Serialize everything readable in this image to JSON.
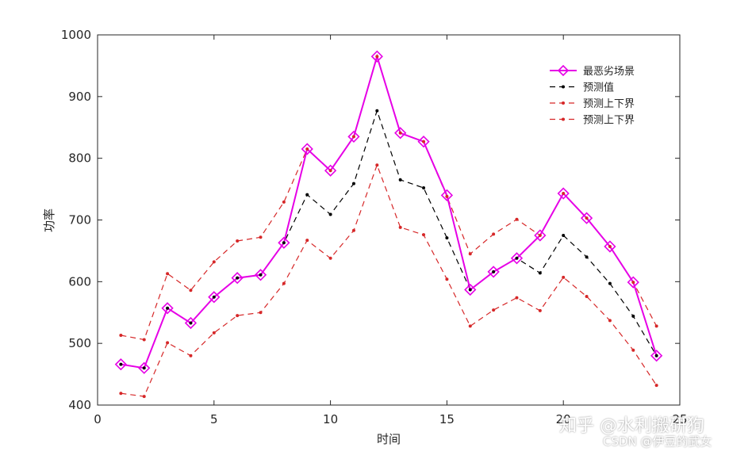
{
  "chart_data": {
    "type": "line",
    "xlabel": "时间",
    "ylabel": "功率",
    "xlim": [
      0,
      25
    ],
    "ylim": [
      400,
      1000
    ],
    "xticks": [
      0,
      5,
      10,
      15,
      20,
      25
    ],
    "yticks": [
      400,
      500,
      600,
      700,
      800,
      900,
      1000
    ],
    "x": [
      1,
      2,
      3,
      4,
      5,
      6,
      7,
      8,
      9,
      10,
      11,
      12,
      13,
      14,
      15,
      16,
      17,
      18,
      19,
      20,
      21,
      22,
      23,
      24
    ],
    "legend_position": "top-right",
    "grid": false,
    "series": [
      {
        "name": "最恶劣场景",
        "color": "#e600e6",
        "style": "solid",
        "marker": "diamond",
        "values": [
          466,
          460,
          557,
          533,
          575,
          606,
          611,
          663,
          815,
          780,
          835,
          965,
          841,
          827,
          740,
          587,
          616,
          638,
          675,
          743,
          703,
          657,
          599,
          480
        ]
      },
      {
        "name": "预测值",
        "color": "#000000",
        "style": "dashed",
        "marker": "dot",
        "values": [
          466,
          460,
          557,
          533,
          575,
          606,
          611,
          663,
          741,
          709,
          759,
          877,
          765,
          752,
          671,
          587,
          616,
          638,
          614,
          675,
          640,
          597,
          544,
          480
        ]
      },
      {
        "name": "预测上下界",
        "color": "#d62728",
        "style": "dashed",
        "marker": "dot",
        "values": [
          513,
          506,
          613,
          586,
          632,
          666,
          672,
          729,
          815,
          780,
          835,
          965,
          841,
          827,
          738,
          645,
          677,
          701,
          675,
          743,
          703,
          657,
          599,
          528
        ]
      },
      {
        "name": "预测上下界",
        "color": "#d62728",
        "style": "dashed",
        "marker": "dot",
        "values": [
          419,
          414,
          501,
          480,
          517,
          545,
          550,
          597,
          667,
          638,
          683,
          789,
          688,
          676,
          604,
          528,
          554,
          574,
          553,
          607,
          576,
          537,
          489,
          432
        ]
      }
    ]
  },
  "watermark": {
    "zhihu": "知乎 @水利搬研狗",
    "csdn": "CSDN @伊豆的武女"
  }
}
